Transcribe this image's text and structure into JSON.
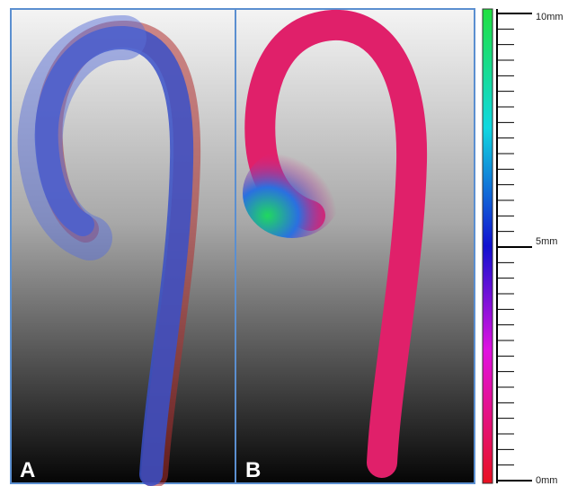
{
  "panels": [
    {
      "label": "A"
    },
    {
      "label": "B"
    }
  ],
  "colorbar": {
    "labels": [
      "10mm",
      "5mm",
      "0mm"
    ]
  }
}
